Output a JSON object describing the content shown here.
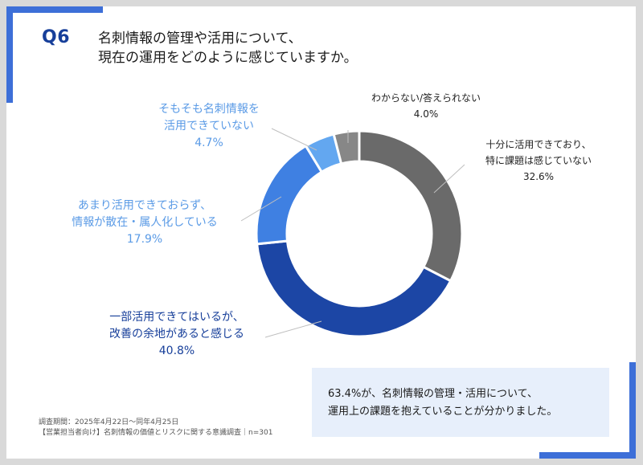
{
  "question": {
    "number": "Q6",
    "line1": "名刺情報の管理や活用について、",
    "line2": "現在の運用をどのように感じていますか。"
  },
  "chart_data": {
    "type": "pie",
    "donut": true,
    "title": "名刺情報の管理や活用について、現在の運用をどのように感じていますか。",
    "slices": [
      {
        "label": "十分に活用できており、特に課題は感じていない",
        "value": 32.6,
        "color": "#6a6a6a"
      },
      {
        "label": "一部活用できてはいるが、改善の余地があると感じる",
        "value": 40.8,
        "color": "#1c46a5"
      },
      {
        "label": "あまり活用できておらず、情報が散在・属人化している",
        "value": 17.9,
        "color": "#3f80e2"
      },
      {
        "label": "そもそも名刺情報を活用できていない",
        "value": 4.7,
        "color": "#63a7f0"
      },
      {
        "label": "わからない/答えられない",
        "value": 4.0,
        "color": "#878787"
      }
    ]
  },
  "labels": {
    "s0": {
      "line1": "十分に活用できており、",
      "line2": "特に課題は感じていない",
      "pct": "32.6%"
    },
    "s1": {
      "line1": "一部活用できてはいるが、",
      "line2": "改善の余地があると感じる",
      "pct": "40.8%"
    },
    "s2": {
      "line1": "あまり活用できておらず、",
      "line2": "情報が散在・属人化している",
      "pct": "17.9%"
    },
    "s3": {
      "line1": "そもそも名刺情報を",
      "line2": "活用できていない",
      "pct": "4.7%"
    },
    "s4": {
      "line1": "わからない/答えられない",
      "pct": "4.0%"
    }
  },
  "footnote": {
    "line1": "調査期間：2025年4月22日～同年4月25日",
    "line2": "【営業担当者向け】名刺情報の価値とリスクに関する意識調査｜n=301"
  },
  "summary": {
    "line1": "63.4%が、名刺情報の管理・活用について、",
    "line2": "運用上の課題を抱えていることが分かりました。"
  }
}
